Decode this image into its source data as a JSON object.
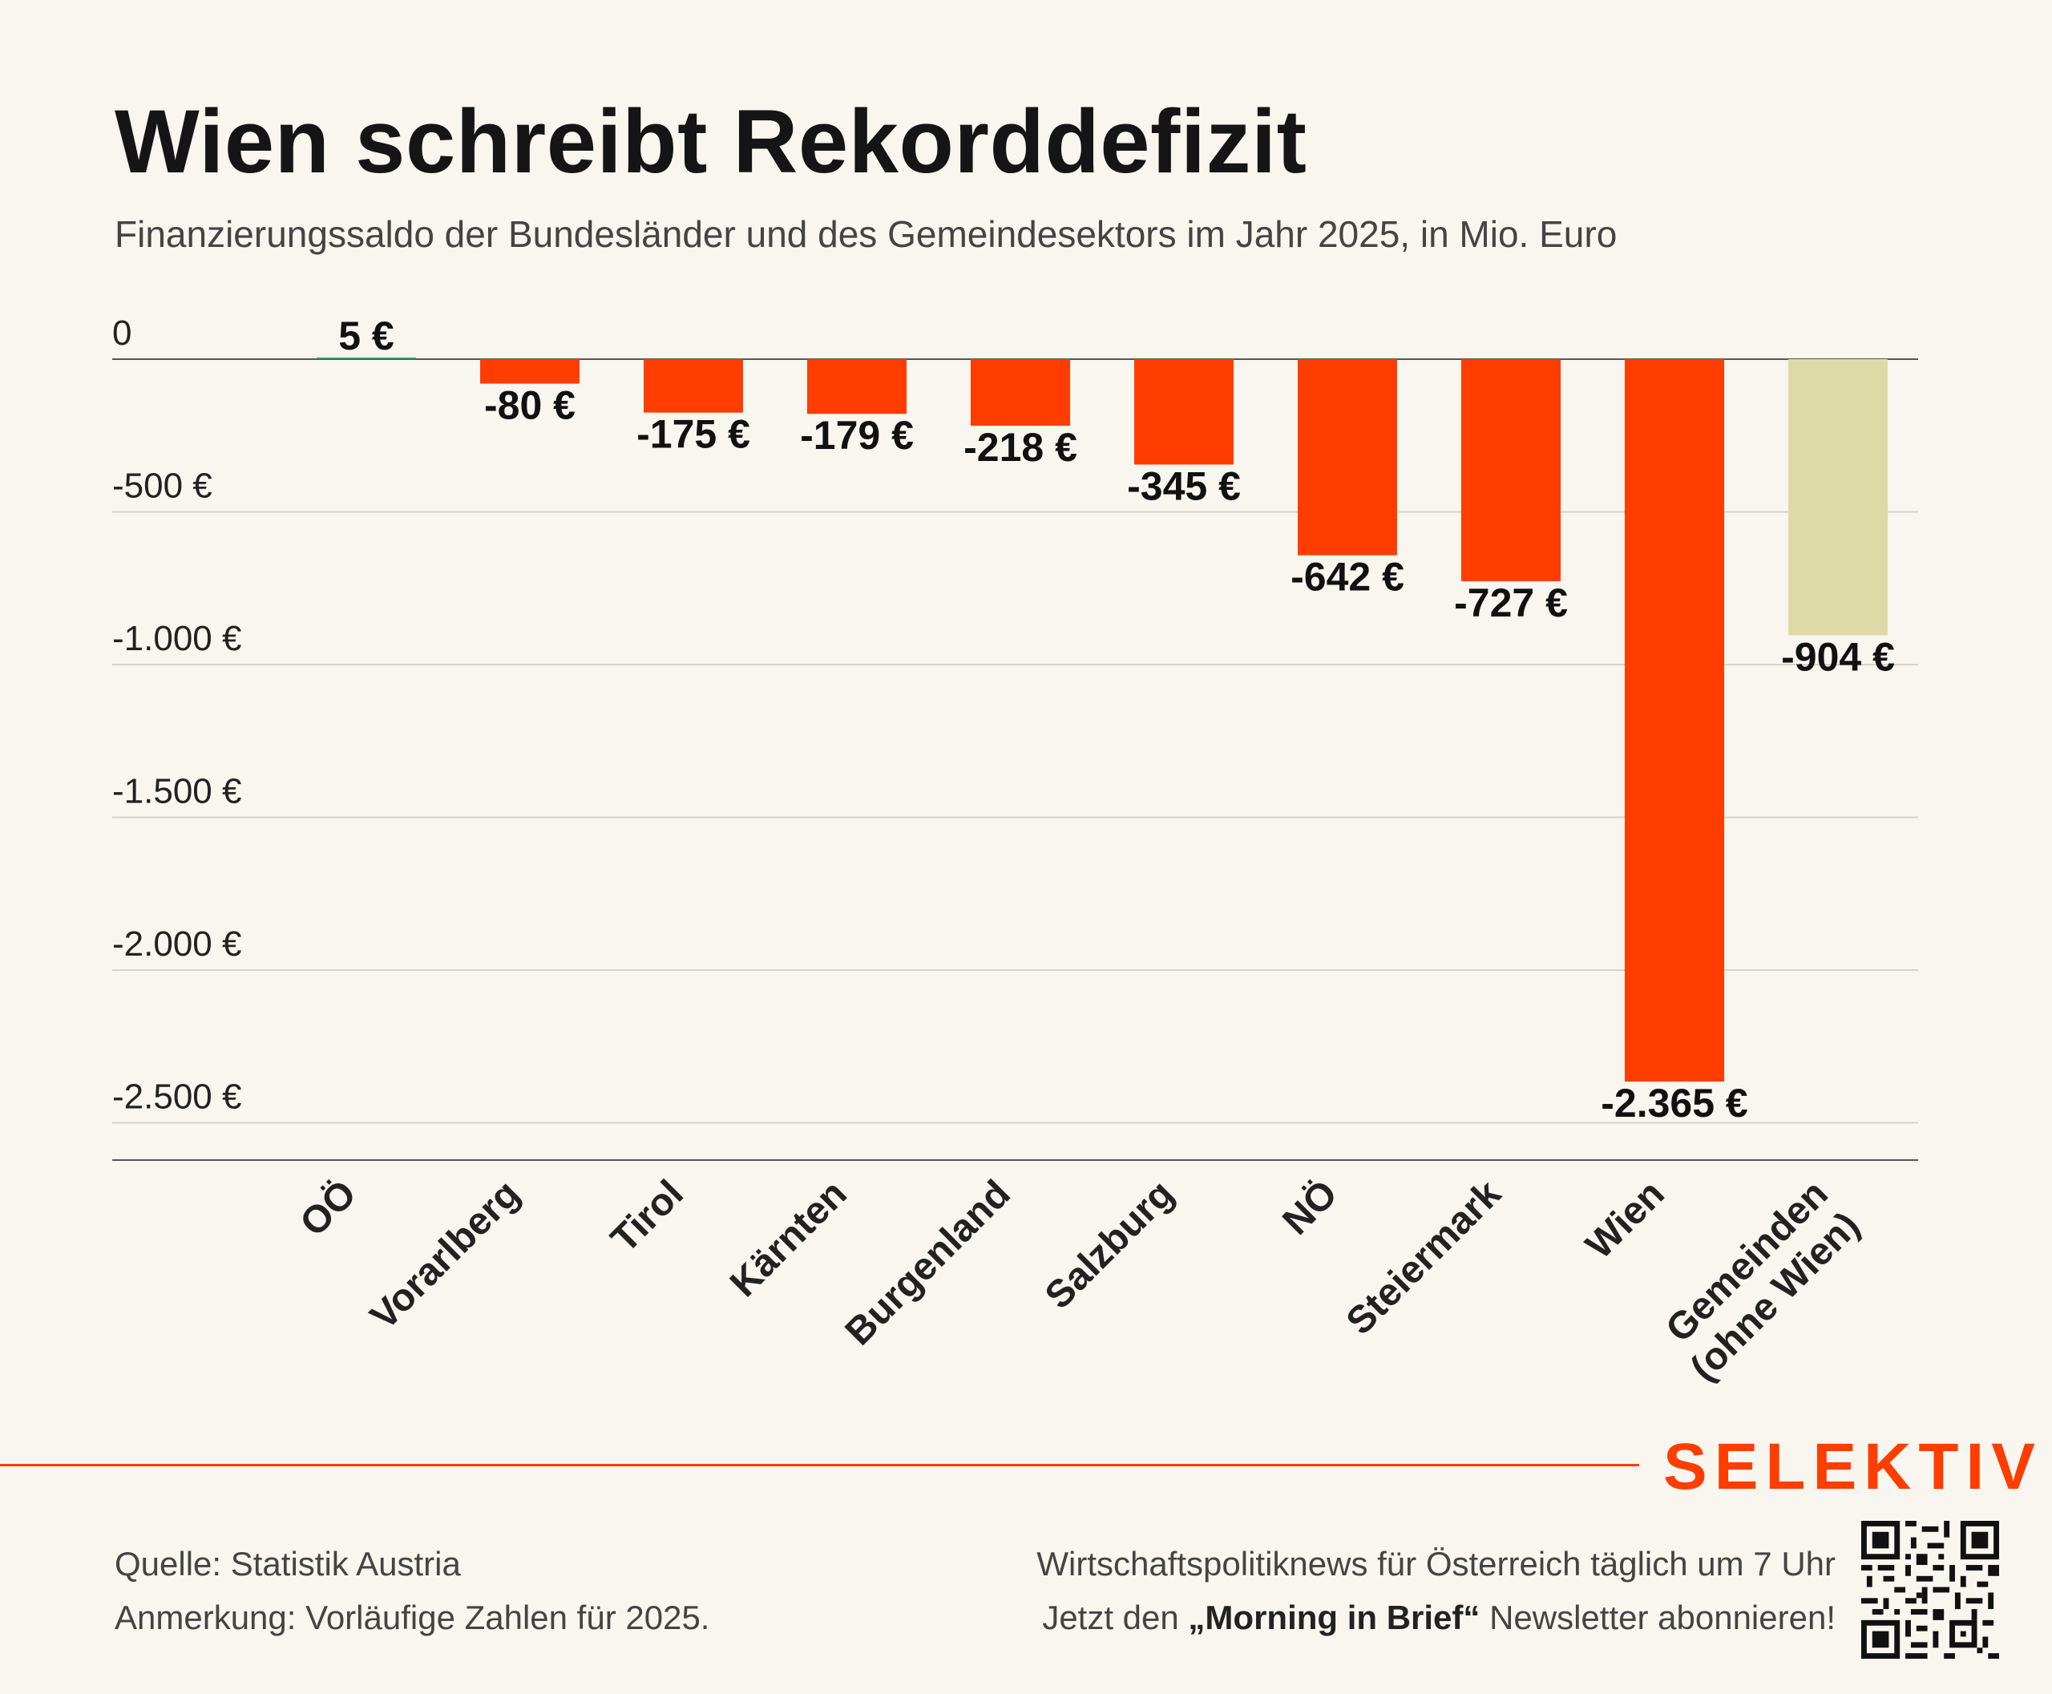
{
  "title": "Wien schreibt Rekorddefizit",
  "subtitle": "Finanzierungssaldo der Bundesländer und des Gemeindesektors im Jahr 2025, in Mio. Euro",
  "chart_data": {
    "type": "bar",
    "categories": [
      "OÖ",
      "Vorarlberg",
      "Tirol",
      "Kärnten",
      "Burgenland",
      "Salzburg",
      "NÖ",
      "Steiermark",
      "Wien",
      "Gemeinden\n(ohne Wien)"
    ],
    "values": [
      5,
      -80,
      -175,
      -179,
      -218,
      -345,
      -642,
      -727,
      -2365,
      -904
    ],
    "value_labels": [
      "5 €",
      "-80 €",
      "-175 €",
      "-179 €",
      "-218 €",
      "-345 €",
      "-642 €",
      "-727 €",
      "-2.365 €",
      "-904 €"
    ],
    "y_ticks": [
      0,
      -500,
      -1000,
      -1500,
      -2000,
      -2500
    ],
    "y_tick_labels": [
      "0",
      "-500 €",
      "-1.000 €",
      "-1.500 €",
      "-2.000 €",
      "-2.500 €"
    ],
    "ylim": [
      -2600,
      0
    ],
    "grid": true,
    "colors": {
      "positive": "#2f8f6f",
      "negative": "#ff3d00",
      "highlight": "#dedaa8",
      "gridline": "#d5d2c8",
      "axis": "#555555"
    },
    "highlight_category": "Gemeinden\n(ohne Wien)"
  },
  "footer": {
    "source": "Quelle: Statistik Austria",
    "note": "Anmerkung: Vorläufige Zahlen für 2025.",
    "brand": "SELEKTIV",
    "promo_line1": "Wirtschaftspolitiknews für Österreich täglich um 7 Uhr",
    "promo_line2_pre": "Jetzt den ",
    "promo_line2_bold": "„Morning in Brief“",
    "promo_line2_post": " Newsletter abonnieren!",
    "qr_icon": "qr-code-icon"
  }
}
